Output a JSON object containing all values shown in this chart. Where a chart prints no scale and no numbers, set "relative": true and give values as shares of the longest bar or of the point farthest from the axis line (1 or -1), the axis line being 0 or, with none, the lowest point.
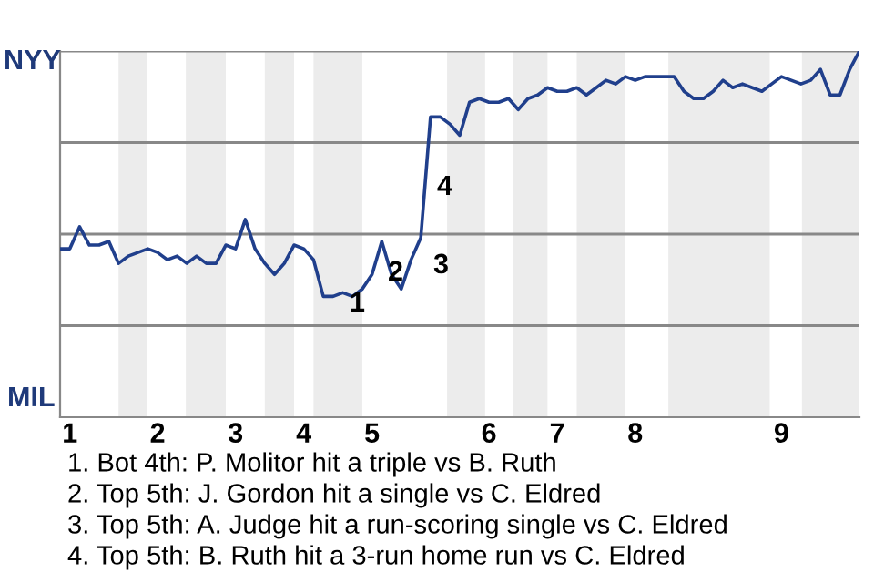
{
  "chart_data": {
    "type": "line",
    "relative": true,
    "categories": [
      null,
      "1",
      null,
      null,
      null,
      null,
      null,
      null,
      null,
      null,
      "2",
      null,
      null,
      null,
      null,
      null,
      null,
      null,
      "3",
      null,
      null,
      null,
      null,
      null,
      null,
      "4",
      null,
      null,
      null,
      null,
      null,
      null,
      "5",
      null,
      null,
      null,
      null,
      null,
      null,
      null,
      null,
      null,
      null,
      null,
      "6",
      null,
      null,
      null,
      null,
      null,
      null,
      "7",
      null,
      null,
      null,
      null,
      null,
      null,
      null,
      "8",
      null,
      null,
      null,
      null,
      null,
      null,
      null,
      null,
      null,
      null,
      null,
      null,
      null,
      null,
      "9",
      null,
      null,
      null,
      null,
      null,
      null,
      null,
      null
    ],
    "series": [
      {
        "color": "#203f8c",
        "values": [
          0.46,
          0.46,
          0.52,
          0.47,
          0.47,
          0.48,
          0.42,
          0.44,
          0.45,
          0.46,
          0.45,
          0.43,
          0.44,
          0.42,
          0.44,
          0.42,
          0.42,
          0.47,
          0.46,
          0.54,
          0.46,
          0.42,
          0.39,
          0.42,
          0.47,
          0.46,
          0.43,
          0.33,
          0.33,
          0.34,
          0.33,
          0.35,
          0.39,
          0.48,
          0.39,
          0.35,
          0.43,
          0.49,
          0.82,
          0.82,
          0.8,
          0.77,
          0.86,
          0.87,
          0.86,
          0.86,
          0.87,
          0.84,
          0.87,
          0.88,
          0.9,
          0.89,
          0.89,
          0.9,
          0.88,
          0.9,
          0.92,
          0.91,
          0.93,
          0.92,
          0.93,
          0.93,
          0.93,
          0.93,
          0.89,
          0.87,
          0.87,
          0.89,
          0.92,
          0.9,
          0.91,
          0.9,
          0.89,
          0.91,
          0.93,
          0.92,
          0.91,
          0.92,
          0.95,
          0.88,
          0.88,
          0.95,
          1.0
        ],
        "name": null
      }
    ],
    "marker": "none",
    "line_style": "solid",
    "ref_lines": [
      {
        "axis": "y",
        "value": 0.25,
        "label": null,
        "color": "#888888"
      },
      {
        "axis": "y",
        "value": 0.5,
        "label": null,
        "color": "#888888"
      },
      {
        "axis": "y",
        "value": 0.75,
        "label": null,
        "color": "#888888"
      },
      {
        "axis": "y",
        "value": 1.0,
        "label": null,
        "color": "#888888"
      }
    ],
    "annotations": [
      "NYY",
      "MIL",
      "1",
      "2",
      "3",
      "4",
      "1. Bot 4th: P. Molitor hit a triple vs B. Ruth",
      "2. Top 5th: J. Gordon hit a single vs C. Eldred",
      "3. Top 5th: A. Judge hit a run-scoring single vs C. Eldred",
      "4. Top 5th: B. Ruth hit a 3-run home run vs C. Eldred"
    ]
  }
}
